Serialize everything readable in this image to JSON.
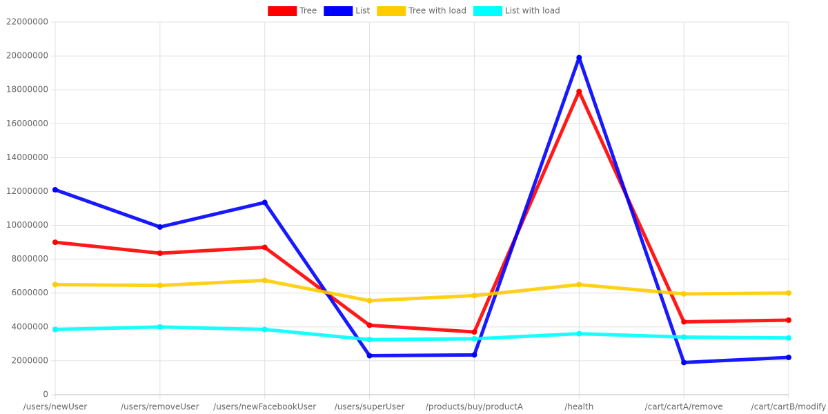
{
  "chart_data": {
    "type": "line",
    "categories": [
      "/users/newUser",
      "/users/removeUser",
      "/users/newFacebookUser",
      "/users/superUser",
      "/products/buy/productA",
      "/health",
      "/cart/cartA/remove",
      "/cart/cartB/modify"
    ],
    "series": [
      {
        "name": "Tree",
        "color": "#ff0000",
        "values": [
          9000000,
          8350000,
          8700000,
          4100000,
          3700000,
          17900000,
          4300000,
          4400000
        ]
      },
      {
        "name": "List",
        "color": "#0000ff",
        "values": [
          12100000,
          9900000,
          11350000,
          2300000,
          2350000,
          19900000,
          1900000,
          2200000
        ]
      },
      {
        "name": "Tree with load",
        "color": "#ffcc00",
        "values": [
          6500000,
          6450000,
          6750000,
          5550000,
          5850000,
          6500000,
          5950000,
          6000000
        ]
      },
      {
        "name": "List with load",
        "color": "#00ffff",
        "values": [
          3850000,
          4000000,
          3850000,
          3250000,
          3300000,
          3600000,
          3400000,
          3350000
        ]
      }
    ],
    "ylim": [
      0,
      22000000
    ],
    "yticks": [
      0,
      2000000,
      4000000,
      6000000,
      8000000,
      10000000,
      12000000,
      14000000,
      16000000,
      18000000,
      20000000,
      22000000
    ],
    "grid": true,
    "legend": "top"
  }
}
